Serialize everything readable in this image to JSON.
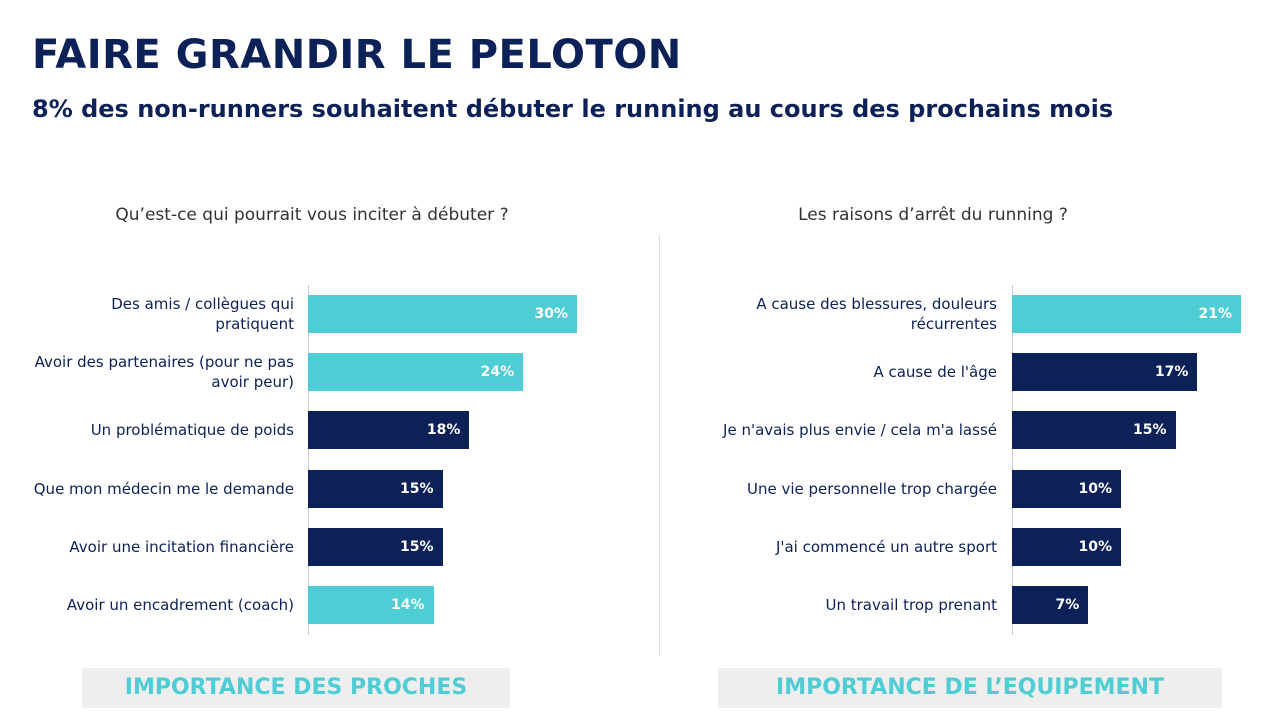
{
  "header": {
    "title": "FAIRE GRANDIR LE PELOTON",
    "subtitle": "8% des non-runners souhaitent débuter le running au cours des prochains mois"
  },
  "chart_data": [
    {
      "type": "bar",
      "title": "Qu’est-ce qui pourrait vous inciter à débuter ?",
      "categories": [
        "Des amis / collègues qui pratiquent",
        "Avoir des partenaires (pour ne pas avoir peur)",
        "Un problématique de poids",
        "Que mon médecin me le demande",
        "Avoir une incitation financière",
        "Avoir un encadrement (coach)"
      ],
      "values": [
        30,
        24,
        18,
        15,
        15,
        14
      ],
      "value_labels": [
        "30%",
        "24%",
        "18%",
        "15%",
        "15%",
        "14%"
      ],
      "colors": [
        "#4fcdd4",
        "#4fcdd4",
        "#0c2157",
        "#0c2157",
        "#0c2157",
        "#4fcdd4"
      ],
      "footer": "IMPORTANCE DES PROCHES"
    },
    {
      "type": "bar",
      "title": "Les raisons d’arrêt du running ?",
      "categories": [
        "A cause des blessures, douleurs récurrentes",
        "A cause de l'âge",
        "Je n'avais plus envie / cela m'a lassé",
        "Une vie personnelle trop chargée",
        "J'ai commencé un autre sport",
        "Un travail trop prenant"
      ],
      "values": [
        21,
        17,
        15,
        10,
        10,
        7
      ],
      "value_labels": [
        "21%",
        "17%",
        "15%",
        "10%",
        "10%",
        "7%"
      ],
      "colors": [
        "#4fcdd4",
        "#0c2157",
        "#0c2157",
        "#0c2157",
        "#0c2157",
        "#0c2157"
      ],
      "footer": "IMPORTANCE DE L’EQUIPEMENT"
    }
  ]
}
